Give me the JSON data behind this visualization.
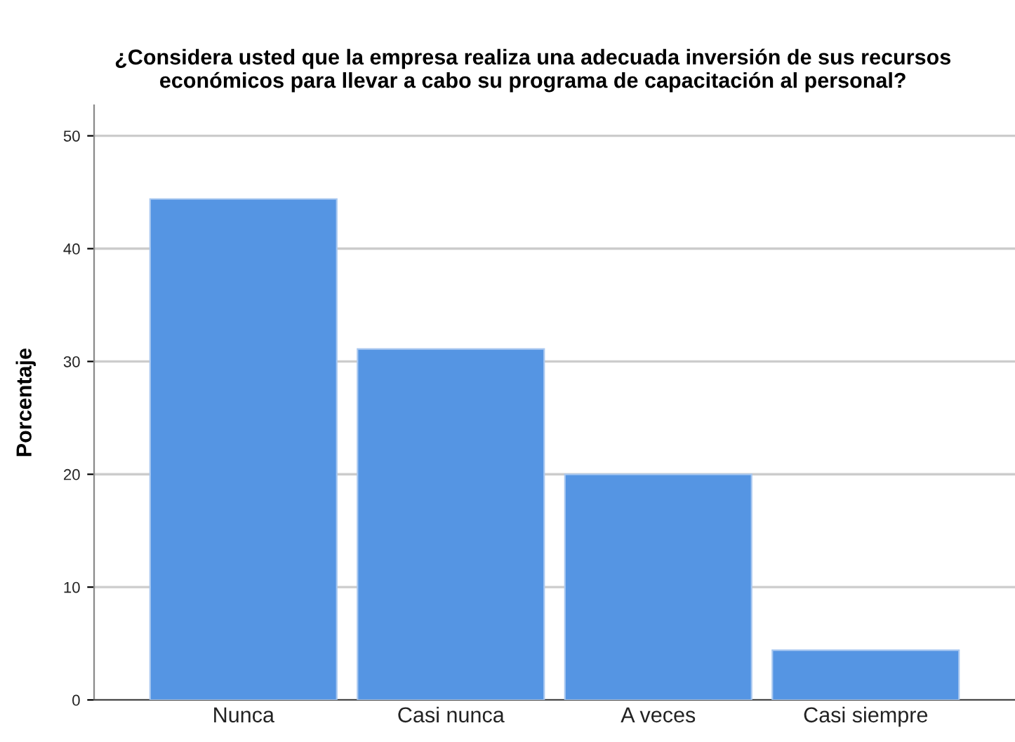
{
  "chart_data": {
    "type": "bar",
    "title": "¿Considera usted que la empresa realiza una adecuada inversión de sus recursos económicos para llevar a cabo su programa de capacitación al personal?",
    "ylabel": "Porcentaje",
    "categories": [
      "Nunca",
      "Casi nunca",
      "A veces",
      "Casi siempre"
    ],
    "values": [
      44.4,
      31.1,
      20.0,
      4.4
    ],
    "color": "#5595e3",
    "ylim": [
      0,
      52.7
    ],
    "yticks": [
      0,
      10,
      20,
      30,
      40,
      50
    ],
    "grid": "y"
  }
}
